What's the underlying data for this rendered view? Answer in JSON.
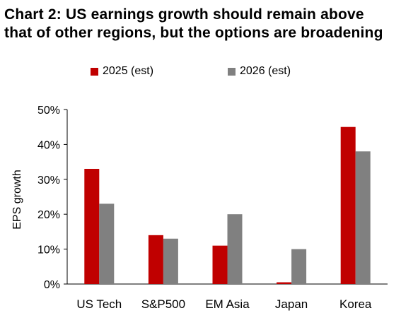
{
  "title_line1": "Chart 2: US earnings growth should remain above",
  "title_line2": "that of other regions, but the options are broadening",
  "chart_data": {
    "type": "bar",
    "title": "Chart 2: US earnings growth should remain above that of other regions, but the options are broadening",
    "xlabel": "",
    "ylabel": "EPS growth",
    "categories": [
      "US Tech",
      "S&P500",
      "EM Asia",
      "Japan",
      "Korea"
    ],
    "series": [
      {
        "name": "2025 (est)",
        "values": [
          33,
          14,
          11,
          0.5,
          45
        ],
        "color": "#c00000"
      },
      {
        "name": "2026 (est)",
        "values": [
          23,
          13,
          20,
          10,
          38
        ],
        "color": "#808080"
      }
    ],
    "ylim": [
      0,
      50
    ],
    "yticks": [
      0,
      10,
      20,
      30,
      40,
      50
    ],
    "ytick_labels": [
      "0%",
      "10%",
      "20%",
      "30%",
      "40%",
      "50%"
    ],
    "grid": false,
    "legend": "top"
  }
}
